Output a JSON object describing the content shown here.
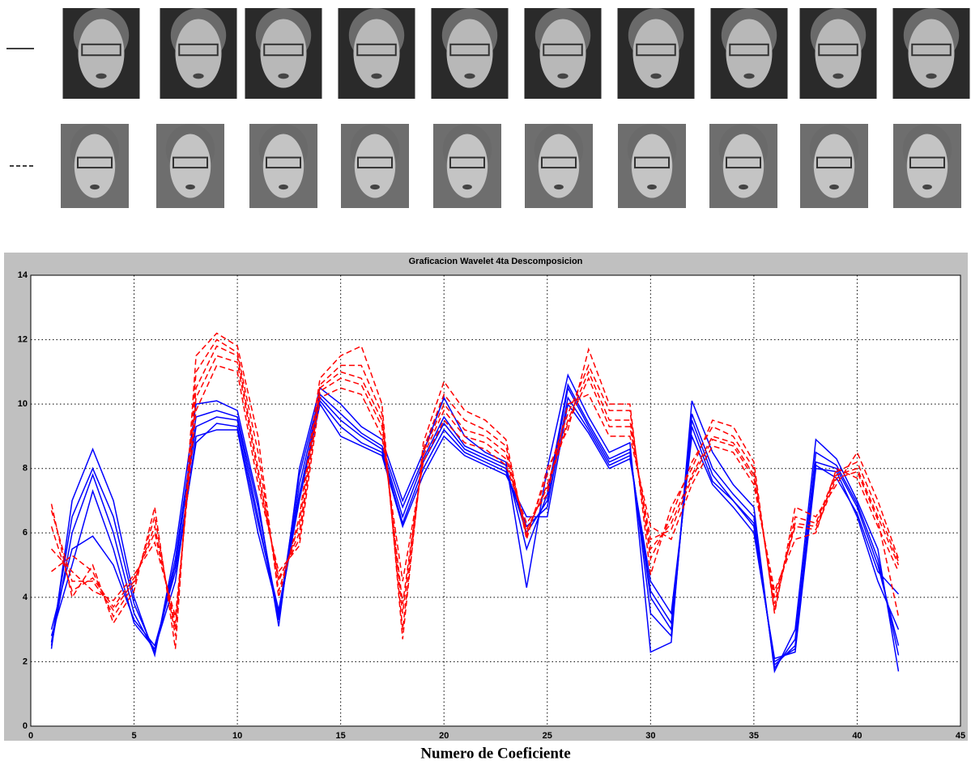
{
  "chart_data": {
    "type": "line",
    "title": "Graficacion Wavelet 4ta Descomposicion",
    "xlabel": "Numero de Coeficiente",
    "x": [
      1,
      2,
      3,
      4,
      5,
      6,
      7,
      8,
      9,
      10,
      11,
      12,
      13,
      14,
      15,
      16,
      17,
      18,
      19,
      20,
      21,
      22,
      23,
      24,
      25,
      26,
      27,
      28,
      29,
      30,
      31,
      32,
      33,
      34,
      35,
      36,
      37,
      38,
      39,
      40,
      41,
      42
    ],
    "xlim": [
      0,
      45
    ],
    "xticks": [
      0,
      5,
      10,
      15,
      20,
      25,
      30,
      35,
      40,
      45
    ],
    "ylim": [
      0,
      14
    ],
    "yticks": [
      0,
      2,
      4,
      6,
      8,
      10,
      12,
      14
    ],
    "grid": true,
    "series": [
      {
        "color": "#0000ff",
        "dash": false,
        "values": [
          2.5,
          6,
          7.8,
          6,
          3.5,
          2.3,
          5,
          9.3,
          9.6,
          9.5,
          6.5,
          3.3,
          7.5,
          10.2,
          9.5,
          9,
          8.6,
          6.5,
          8.2,
          9.4,
          8.6,
          8.3,
          8,
          6,
          7,
          10.5,
          9.3,
          8.2,
          8.5,
          4,
          3,
          9.5,
          7.8,
          7,
          6.3,
          1.9,
          2.5,
          8.2,
          8,
          6.8,
          5,
          2.5
        ]
      },
      {
        "color": "#0000ff",
        "dash": false,
        "values": [
          2.4,
          7,
          8.6,
          7,
          4,
          2.2,
          5.5,
          10,
          10.1,
          9.8,
          7,
          3.1,
          8,
          10.5,
          10,
          9.3,
          8.9,
          7,
          8.5,
          10.2,
          9,
          8.5,
          8.2,
          4.3,
          8,
          10.9,
          9.6,
          8.5,
          8.8,
          2.3,
          2.6,
          10.1,
          8.5,
          7.5,
          6.8,
          1.7,
          3,
          8.9,
          8.3,
          7,
          5.5,
          1.7
        ]
      },
      {
        "color": "#0000ff",
        "dash": false,
        "values": [
          2.8,
          5,
          7.3,
          5.5,
          3.2,
          2.4,
          4.5,
          9,
          9.2,
          9.2,
          6,
          3.5,
          7,
          10,
          9,
          8.7,
          8.4,
          6.2,
          7.8,
          9,
          8.4,
          8.1,
          7.8,
          6.5,
          6.5,
          10,
          9.1,
          8,
          8.3,
          4.5,
          3.5,
          9,
          7.5,
          6.8,
          6,
          2.1,
          2.3,
          8,
          7.9,
          6.5,
          4.5,
          3
        ]
      },
      {
        "color": "#0000ff",
        "dash": false,
        "values": [
          2.6,
          6.5,
          8,
          6.5,
          3.8,
          2.3,
          5.2,
          9.6,
          9.8,
          9.6,
          6.8,
          3.4,
          7.8,
          10.3,
          9.7,
          9.1,
          8.7,
          6.8,
          8.3,
          9.6,
          8.7,
          8.4,
          8.1,
          5.5,
          7.2,
          10.6,
          9.4,
          8.3,
          8.6,
          3.5,
          2.8,
          9.7,
          8,
          7.2,
          6.5,
          1.8,
          2.7,
          8.5,
          8.1,
          6.9,
          5.2,
          2.2
        ]
      },
      {
        "color": "#0000ff",
        "dash": false,
        "values": [
          3,
          5.5,
          5.9,
          5,
          3.3,
          2.5,
          4.8,
          8.8,
          9.4,
          9.3,
          6.3,
          3.6,
          7.2,
          10.1,
          9.3,
          8.8,
          8.5,
          6.3,
          8,
          9.2,
          8.5,
          8.2,
          7.9,
          6.2,
          6.8,
          10.2,
          9.2,
          8.1,
          8.4,
          4.2,
          3.2,
          9.3,
          7.6,
          7,
          6.2,
          2,
          2.4,
          8.1,
          7.7,
          6.6,
          4.8,
          4.1
        ]
      },
      {
        "color": "#ff0000",
        "dash": true,
        "values": [
          6.7,
          4.5,
          4.5,
          3.6,
          4.5,
          6.2,
          3,
          10.5,
          11.8,
          11.5,
          8,
          4.5,
          6,
          10.5,
          11,
          10.8,
          9.5,
          3.5,
          8.5,
          10,
          9.2,
          9,
          8.5,
          6,
          7.5,
          9.5,
          11,
          9.5,
          9.5,
          5.5,
          6.3,
          7.8,
          9,
          8.8,
          7.8,
          3.8,
          6.3,
          6.2,
          7.8,
          8,
          6.5,
          5
        ]
      },
      {
        "color": "#ff0000",
        "dash": true,
        "values": [
          6.9,
          4,
          5,
          3.2,
          4.2,
          6.8,
          2.4,
          11.5,
          12.2,
          11.8,
          9,
          4,
          6.5,
          10.8,
          11.5,
          11.8,
          10,
          2.7,
          8.8,
          10.7,
          9.8,
          9.5,
          8.9,
          5.8,
          8,
          9.2,
          11.7,
          10,
          10,
          4.7,
          6.8,
          8,
          9.5,
          9.3,
          8.2,
          3.5,
          6.8,
          6.5,
          7.5,
          8.5,
          7,
          5.2
        ]
      },
      {
        "color": "#ff0000",
        "dash": true,
        "values": [
          5.5,
          4.8,
          4.2,
          3.9,
          4.7,
          5.7,
          3.4,
          9.8,
          11.2,
          11,
          7.5,
          4.8,
          5.6,
          10.2,
          10.5,
          10.3,
          9,
          4.5,
          8.2,
          9.5,
          8.8,
          8.6,
          8.1,
          6.3,
          7.2,
          10,
          10.3,
          9,
          9,
          6.2,
          5.8,
          7.5,
          8.7,
          8.5,
          7.5,
          4.2,
          5.8,
          6,
          8,
          7.7,
          6.2,
          4.8
        ]
      },
      {
        "color": "#ff0000",
        "dash": true,
        "values": [
          4.8,
          5.3,
          4.8,
          3.4,
          4.4,
          6.5,
          2.8,
          11,
          12,
          11.6,
          8.5,
          4.2,
          6.3,
          10.6,
          11.2,
          11.2,
          9.7,
          3,
          8.6,
          10.3,
          9.5,
          9.2,
          8.7,
          5.9,
          7.8,
          9.7,
          11.2,
          9.8,
          9.8,
          5.2,
          6.5,
          8.2,
          9.3,
          9,
          8,
          3.6,
          6.5,
          6.3,
          7.9,
          8.2,
          6.7,
          5.1
        ]
      },
      {
        "color": "#ff0000",
        "dash": true,
        "values": [
          6.2,
          4.2,
          4.6,
          3.7,
          4.6,
          6,
          3.2,
          10.2,
          11.5,
          11.3,
          7.8,
          4.6,
          5.8,
          10.4,
          10.8,
          10.6,
          9.3,
          3.8,
          8.4,
          9.8,
          9,
          8.8,
          8.3,
          6.1,
          7.4,
          9.4,
          10.8,
          9.3,
          9.3,
          5.8,
          6.1,
          7.7,
          8.9,
          8.7,
          7.7,
          4,
          6.2,
          6.1,
          7.7,
          7.9,
          6.4,
          3.4
        ]
      }
    ]
  }
}
